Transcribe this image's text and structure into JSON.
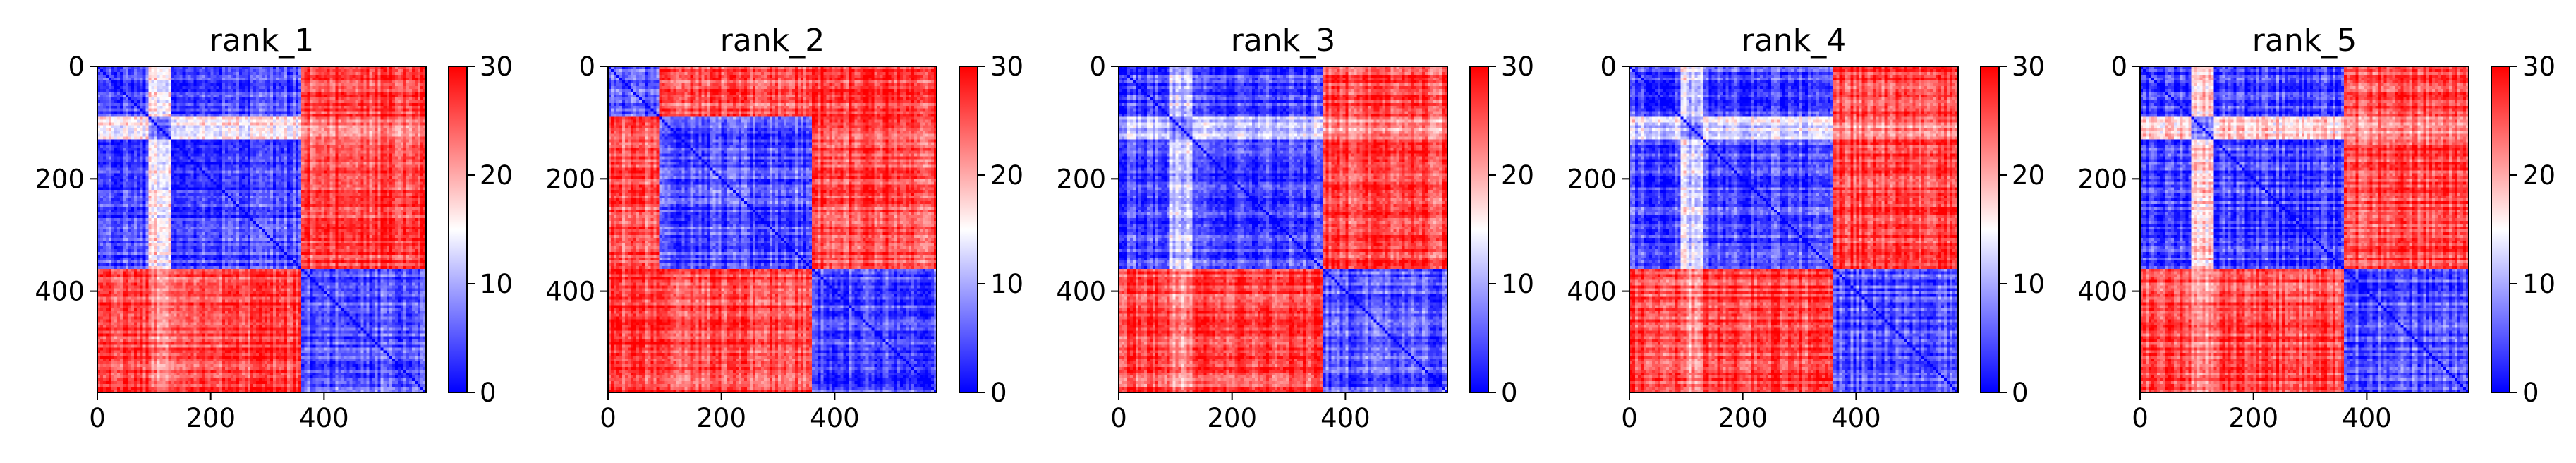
{
  "figure": {
    "type": "heatmap",
    "colormap": "bwr",
    "colors": {
      "low": "#0000ff",
      "mid": "#ffffff",
      "high": "#ff0000"
    }
  },
  "chart_data": [
    {
      "type": "heatmap",
      "title": "rank_1",
      "xlim": [
        0,
        580
      ],
      "ylim": [
        580,
        0
      ],
      "clim": [
        0,
        30
      ],
      "xticks": [
        0,
        200,
        400
      ],
      "yticks": [
        0,
        200,
        400
      ],
      "colorbar_ticks": [
        0,
        10,
        20,
        30
      ],
      "boundaries": [
        90,
        130,
        360
      ],
      "block_values": [
        [
          4,
          15,
          4,
          26
        ],
        [
          15,
          6,
          15,
          22
        ],
        [
          4,
          15,
          4,
          26
        ],
        [
          26,
          22,
          26,
          5
        ]
      ],
      "diagonal_value": 0,
      "grid_on": false
    },
    {
      "type": "heatmap",
      "title": "rank_2",
      "xlim": [
        0,
        580
      ],
      "ylim": [
        580,
        0
      ],
      "clim": [
        0,
        30
      ],
      "xticks": [
        0,
        200,
        400
      ],
      "yticks": [
        0,
        200,
        400
      ],
      "colorbar_ticks": [
        0,
        10,
        20,
        30
      ],
      "boundaries": [
        90,
        360
      ],
      "block_values": [
        [
          5,
          25,
          27
        ],
        [
          25,
          5,
          26
        ],
        [
          27,
          26,
          5
        ]
      ],
      "diagonal_value": 0,
      "grid_on": false
    },
    {
      "type": "heatmap",
      "title": "rank_3",
      "xlim": [
        0,
        580
      ],
      "ylim": [
        580,
        0
      ],
      "clim": [
        0,
        30
      ],
      "xticks": [
        0,
        200,
        400
      ],
      "yticks": [
        0,
        200,
        400
      ],
      "colorbar_ticks": [
        0,
        10,
        20,
        30
      ],
      "boundaries": [
        90,
        130,
        360
      ],
      "block_values": [
        [
          4,
          12,
          4,
          26
        ],
        [
          12,
          8,
          12,
          22
        ],
        [
          4,
          12,
          4,
          26
        ],
        [
          26,
          22,
          26,
          5
        ]
      ],
      "diagonal_value": 0,
      "grid_on": false
    },
    {
      "type": "heatmap",
      "title": "rank_4",
      "xlim": [
        0,
        580
      ],
      "ylim": [
        580,
        0
      ],
      "clim": [
        0,
        30
      ],
      "xticks": [
        0,
        200,
        400
      ],
      "yticks": [
        0,
        200,
        400
      ],
      "colorbar_ticks": [
        0,
        10,
        20,
        30
      ],
      "boundaries": [
        90,
        130,
        360
      ],
      "block_values": [
        [
          4,
          13,
          4,
          26
        ],
        [
          13,
          8,
          13,
          22
        ],
        [
          4,
          13,
          4,
          26
        ],
        [
          26,
          22,
          26,
          5
        ]
      ],
      "diagonal_value": 0,
      "grid_on": false
    },
    {
      "type": "heatmap",
      "title": "rank_5",
      "xlim": [
        0,
        580
      ],
      "ylim": [
        580,
        0
      ],
      "clim": [
        0,
        30
      ],
      "xticks": [
        0,
        200,
        400
      ],
      "yticks": [
        0,
        200,
        400
      ],
      "colorbar_ticks": [
        0,
        10,
        20,
        30
      ],
      "boundaries": [
        90,
        130,
        360
      ],
      "block_values": [
        [
          4,
          18,
          4,
          26
        ],
        [
          18,
          8,
          18,
          22
        ],
        [
          4,
          18,
          4,
          26
        ],
        [
          26,
          22,
          26,
          5
        ]
      ],
      "diagonal_value": 0,
      "grid_on": false
    }
  ]
}
